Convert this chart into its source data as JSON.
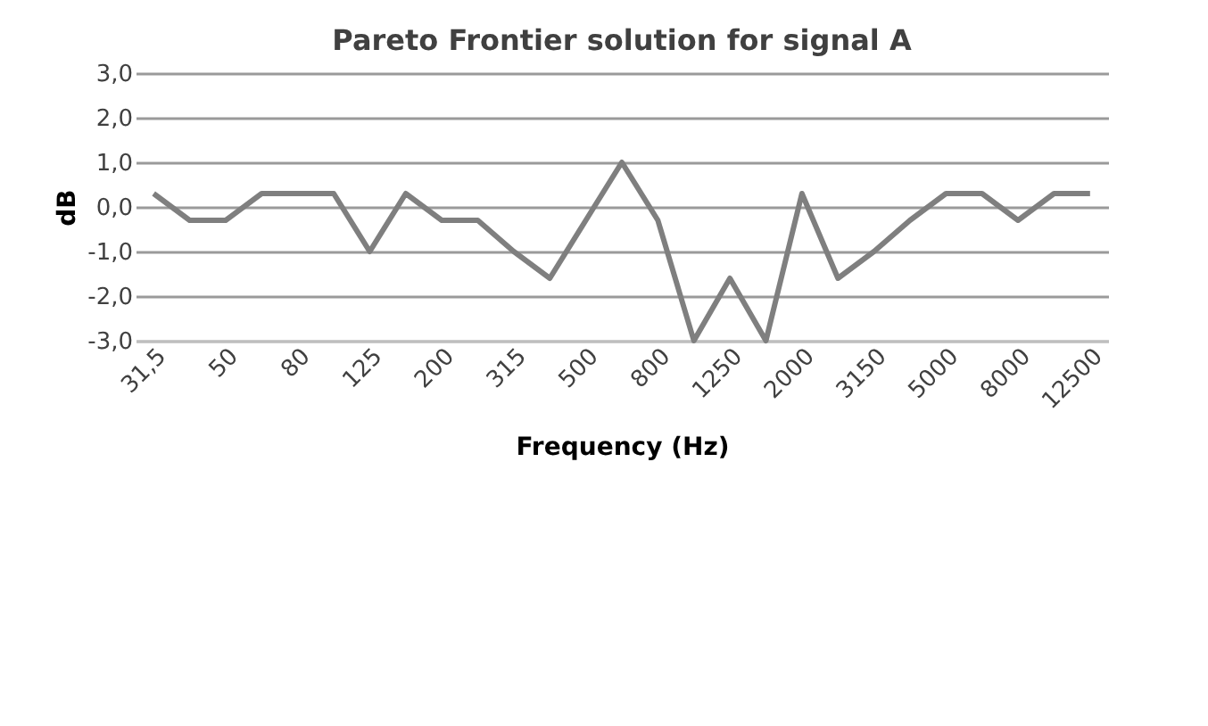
{
  "chart_data": {
    "type": "line",
    "title": "Pareto Frontier solution for signal A",
    "xlabel": "Frequency (Hz)",
    "ylabel": "dB",
    "categories": [
      "31,5",
      null,
      "50",
      null,
      "80",
      null,
      "125",
      null,
      "200",
      null,
      "315",
      null,
      "500",
      null,
      "800",
      null,
      "1250",
      null,
      "2000",
      null,
      "3150",
      null,
      "5000",
      null,
      "8000",
      null,
      "12500"
    ],
    "series": [
      {
        "color": "#7f7f7f",
        "values": [
          0.3,
          -0.3,
          -0.3,
          0.3,
          0.3,
          0.3,
          -1.0,
          0.3,
          -0.3,
          -0.3,
          -1.0,
          -1.6,
          -0.3,
          1.0,
          -0.3,
          -3.0,
          -1.6,
          -3.0,
          0.3,
          -1.6,
          -1.0,
          -0.3,
          0.3,
          0.3,
          -0.3,
          0.3,
          0.3
        ]
      }
    ],
    "ylim": [
      -3,
      3
    ],
    "yticks": [
      {
        "value": -3,
        "label": "-3,0"
      },
      {
        "value": -2,
        "label": "-2,0"
      },
      {
        "value": -1,
        "label": "-1,0"
      },
      {
        "value": 0,
        "label": "0,0"
      },
      {
        "value": 1,
        "label": "1,0"
      },
      {
        "value": 2,
        "label": "2,0"
      },
      {
        "value": 3,
        "label": "3,0"
      }
    ],
    "grid": "y",
    "marker": "none",
    "line_style": "solid"
  }
}
